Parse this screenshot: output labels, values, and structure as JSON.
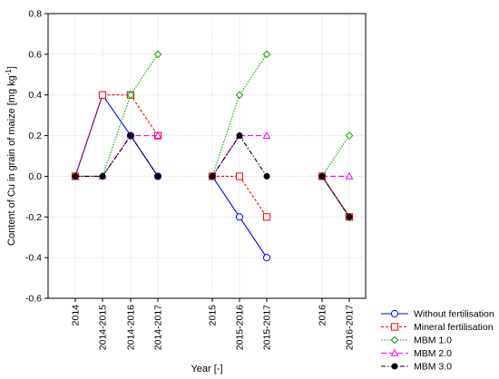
{
  "chart_data": {
    "type": "line",
    "title": "",
    "xlabel": "Year [-]",
    "ylabel": "Content of Cu in grain of maize [mg kg",
    "ylabel_sup": "-1",
    "ylabel_end": "]",
    "ylim": [
      -0.6,
      0.8
    ],
    "yticks": [
      "-0.6",
      "-0.4",
      "-0.2",
      "0.0",
      "0.2",
      "0.4",
      "0.6",
      "0.8"
    ],
    "categories": [
      "2014",
      "2014-2015",
      "2014-2016",
      "2014-2017",
      "2015",
      "2015-2016",
      "2015-2017",
      "2016",
      "2016-2017"
    ],
    "groups": [
      [
        0,
        1,
        2,
        3
      ],
      [
        4,
        5,
        6
      ],
      [
        7,
        8
      ]
    ],
    "grid": true,
    "legend_position": "bottom-right",
    "series": [
      {
        "name": "Without fertilisation",
        "color": "#0000ff",
        "marker": "circle",
        "dash": "solid",
        "values": [
          0.0,
          0.4,
          0.2,
          0.0,
          0.0,
          -0.2,
          -0.4,
          0.0,
          -0.2
        ]
      },
      {
        "name": "Mineral fertilisation",
        "color": "#ff0000",
        "marker": "square",
        "dash": "dashed",
        "values": [
          0.0,
          0.4,
          0.4,
          0.2,
          0.0,
          0.0,
          -0.2,
          0.0,
          -0.2
        ]
      },
      {
        "name": "MBM 1.0",
        "color": "#00a000",
        "marker": "diamond",
        "dash": "dotted",
        "values": [
          0.0,
          0.0,
          0.4,
          0.6,
          0.0,
          0.4,
          0.6,
          0.0,
          0.2
        ]
      },
      {
        "name": "MBM 2.0",
        "color": "#ff00ff",
        "marker": "triangle",
        "dash": "longdash",
        "values": [
          0.0,
          0.0,
          0.2,
          0.2,
          0.0,
          0.2,
          0.2,
          0.0,
          0.0
        ]
      },
      {
        "name": "MBM 3.0",
        "color": "#000000",
        "marker": "filledcircle",
        "dash": "dashdot",
        "values": [
          0.0,
          0.0,
          0.2,
          0.0,
          0.0,
          0.2,
          0.0,
          0.0,
          -0.2
        ]
      }
    ]
  }
}
